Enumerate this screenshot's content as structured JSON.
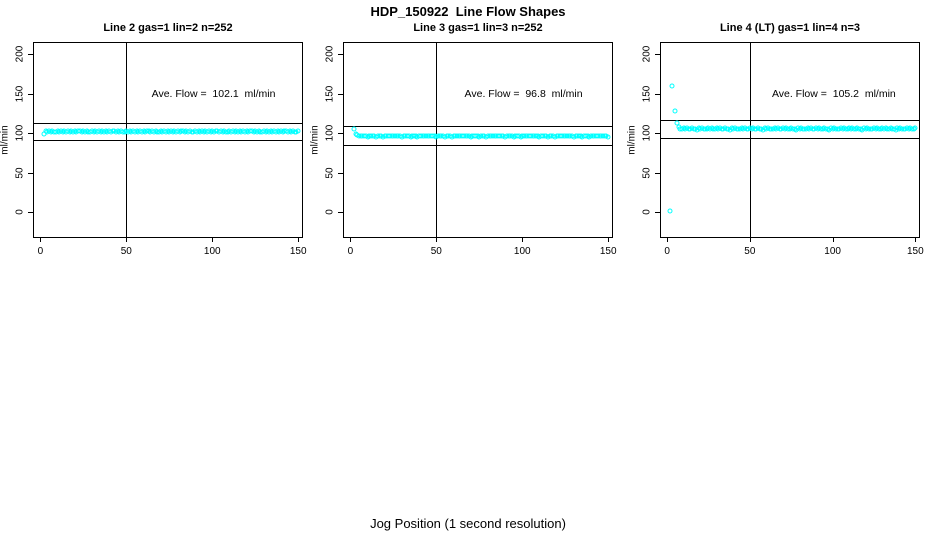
{
  "figure": {
    "title": "HDP_150922  Line Flow Shapes",
    "xlabel": "Jog Position (1 second resolution)",
    "background_color": "#FFFFFF",
    "marker_color": "#00FFFF"
  },
  "chart_data": [
    {
      "type": "scatter",
      "title": "Line 2 gas=1 lin=2 n=252",
      "ylabel": "ml/min",
      "annotation": "Ave. Flow =  102.1  ml/min",
      "ave_flow_ml_min": 102.1,
      "n": 252,
      "xlim": [
        -3.7,
        152.2
      ],
      "ylim": [
        -31,
        214
      ],
      "xticks": [
        0,
        50,
        100,
        150
      ],
      "yticks": [
        0,
        50,
        100,
        150,
        200
      ],
      "grid": false,
      "vline_x": 50,
      "hlines": [
        112.4,
        91.3
      ],
      "marker": "open-circle",
      "marker_color": "#00FFFF",
      "explicit_points": [
        [
          2,
          99.5
        ]
      ],
      "steady_band": {
        "x_from": 3,
        "x_to": 150,
        "step": 1,
        "y_mean": 102.1,
        "jitter_amp": 1.0,
        "jitter_pattern": [
          0.4,
          -0.6,
          1.0,
          -0.2,
          0.7,
          -0.9,
          0.1,
          0.8,
          -0.4,
          0.3,
          -1.0,
          0.6,
          -0.1,
          0.9,
          -0.7,
          0.2,
          -0.5,
          1.1,
          -0.3,
          0.5
        ]
      }
    },
    {
      "type": "scatter",
      "title": "Line 3 gas=1 lin=3 n=252",
      "ylabel": "ml/min",
      "annotation": "Ave. Flow =  96.8  ml/min",
      "ave_flow_ml_min": 96.8,
      "n": 252,
      "xlim": [
        -3.7,
        152.2
      ],
      "ylim": [
        -31,
        214
      ],
      "xticks": [
        0,
        50,
        100,
        150
      ],
      "yticks": [
        0,
        50,
        100,
        150,
        200
      ],
      "grid": false,
      "vline_x": 50,
      "hlines": [
        109.4,
        85.6
      ],
      "marker": "open-circle",
      "marker_color": "#00FFFF",
      "explicit_points": [
        [
          2,
          104.8
        ],
        [
          3,
          99.5
        ],
        [
          4,
          97.5
        ]
      ],
      "steady_band": {
        "x_from": 5,
        "x_to": 150,
        "step": 1,
        "y_mean": 96.4,
        "jitter_amp": 0.7,
        "jitter_pattern": [
          0.4,
          -0.6,
          1.0,
          -0.2,
          0.7,
          -0.9,
          0.1,
          0.8,
          -0.4,
          0.3,
          -1.0,
          0.6,
          -0.1,
          0.9,
          -0.7,
          0.2,
          -0.5,
          1.1,
          -0.3,
          0.5
        ]
      }
    },
    {
      "type": "scatter",
      "title": "Line 4 (LT) gas=1 lin=4 n=3",
      "ylabel": "ml/min",
      "annotation": "Ave. Flow =  105.2  ml/min",
      "ave_flow_ml_min": 105.2,
      "n": 3,
      "xlim": [
        -3.7,
        152.2
      ],
      "ylim": [
        -31,
        214
      ],
      "xticks": [
        0,
        50,
        100,
        150
      ],
      "yticks": [
        0,
        50,
        100,
        150,
        200
      ],
      "grid": false,
      "vline_x": 50,
      "hlines": [
        116.2,
        94.6
      ],
      "marker": "open-circle",
      "marker_color": "#00FFFF",
      "explicit_points": [
        [
          1.5,
          2
        ],
        [
          3,
          160
        ],
        [
          5,
          128
        ],
        [
          6,
          112.5
        ],
        [
          7,
          108.5
        ]
      ],
      "steady_band": {
        "x_from": 8,
        "x_to": 150,
        "step": 1,
        "y_mean": 105.6,
        "jitter_amp": 0.9,
        "jitter_pattern": [
          0.4,
          -0.6,
          1.0,
          -0.2,
          0.7,
          -0.9,
          0.1,
          0.8,
          -0.4,
          0.3,
          -1.0,
          0.6,
          -0.1,
          0.9,
          -0.7,
          0.2,
          -0.5,
          1.1,
          -0.3,
          0.5
        ]
      }
    }
  ]
}
